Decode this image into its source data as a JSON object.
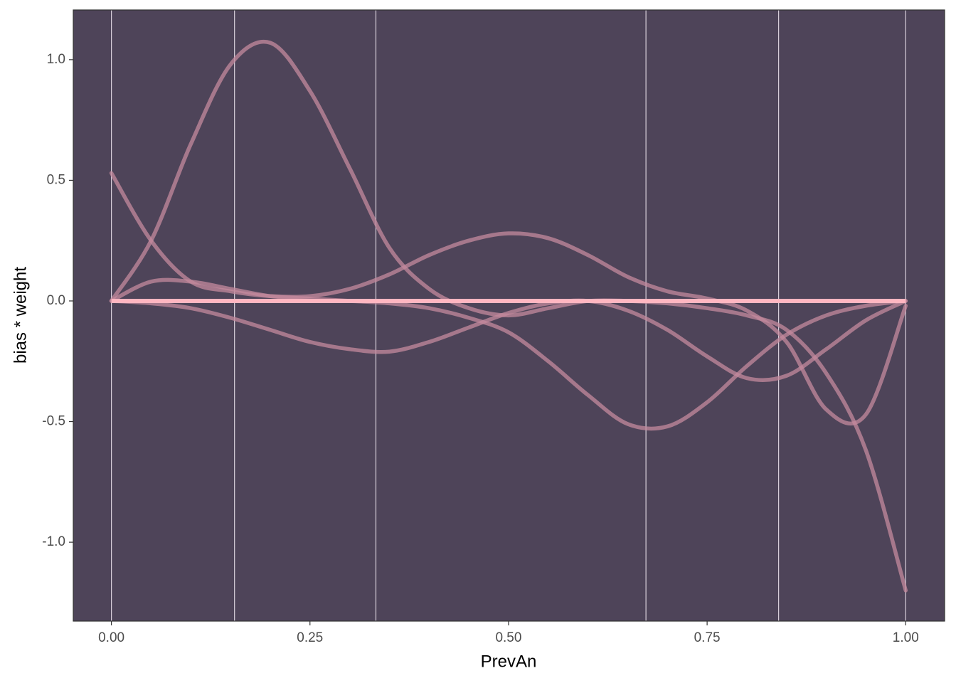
{
  "chart_data": {
    "type": "line",
    "x_label": "PrevAn",
    "y_label": "bias * weight",
    "x": [
      0,
      0.05,
      0.1,
      0.15,
      0.2,
      0.25,
      0.3,
      0.35,
      0.4,
      0.45,
      0.5,
      0.55,
      0.6,
      0.65,
      0.7,
      0.75,
      0.8,
      0.85,
      0.9,
      0.95,
      1
    ],
    "series": [
      {
        "color": "#c48a9e",
        "values": [
          0,
          0.25,
          0.65,
          0.98,
          1.07,
          0.87,
          0.55,
          0.22,
          0.05,
          -0.03,
          -0.06,
          -0.03,
          0,
          0,
          -0.01,
          -0.03,
          -0.06,
          -0.12,
          -0.3,
          -0.62,
          -1.2
        ]
      },
      {
        "color": "#c48a9e",
        "values": [
          0.53,
          0.25,
          0.08,
          0.04,
          0.02,
          0.02,
          0.05,
          0.11,
          0.19,
          0.25,
          0.28,
          0.26,
          0.19,
          0.1,
          0.04,
          0.01,
          -0.04,
          -0.17,
          -0.45,
          -0.47,
          -0.02
        ]
      },
      {
        "color": "#c48a9e",
        "values": [
          0,
          0.08,
          0.08,
          0.05,
          0.02,
          0.01,
          0,
          -0.01,
          -0.03,
          -0.07,
          -0.13,
          -0.25,
          -0.39,
          -0.51,
          -0.52,
          -0.42,
          -0.27,
          -0.14,
          -0.06,
          -0.02,
          0
        ]
      },
      {
        "color": "#c48a9e",
        "values": [
          0,
          -0.01,
          -0.03,
          -0.07,
          -0.12,
          -0.17,
          -0.2,
          -0.21,
          -0.17,
          -0.11,
          -0.05,
          -0.01,
          0,
          -0.04,
          -0.12,
          -0.23,
          -0.32,
          -0.31,
          -0.2,
          -0.08,
          0
        ]
      }
    ],
    "hline": 0,
    "hline_color": "#ffb6c1",
    "vlines": [
      0,
      0.155,
      0.333,
      0.673,
      0.84,
      1
    ],
    "xlim": [
      -0.048,
      1.049
    ],
    "ylim": [
      -1.327,
      1.206
    ],
    "xticks": [
      {
        "value": 0,
        "label": "0.00"
      },
      {
        "value": 0.25,
        "label": "0.25"
      },
      {
        "value": 0.5,
        "label": "0.50"
      },
      {
        "value": 0.75,
        "label": "0.75"
      },
      {
        "value": 1,
        "label": "1.00"
      }
    ],
    "yticks": [
      {
        "value": -1,
        "label": "-1.0"
      },
      {
        "value": -0.5,
        "label": "-0.5"
      },
      {
        "value": 0,
        "label": "0.0"
      },
      {
        "value": 0.5,
        "label": "0.5"
      },
      {
        "value": 1,
        "label": "1.0"
      }
    ],
    "panel_color": "#4e4459"
  }
}
